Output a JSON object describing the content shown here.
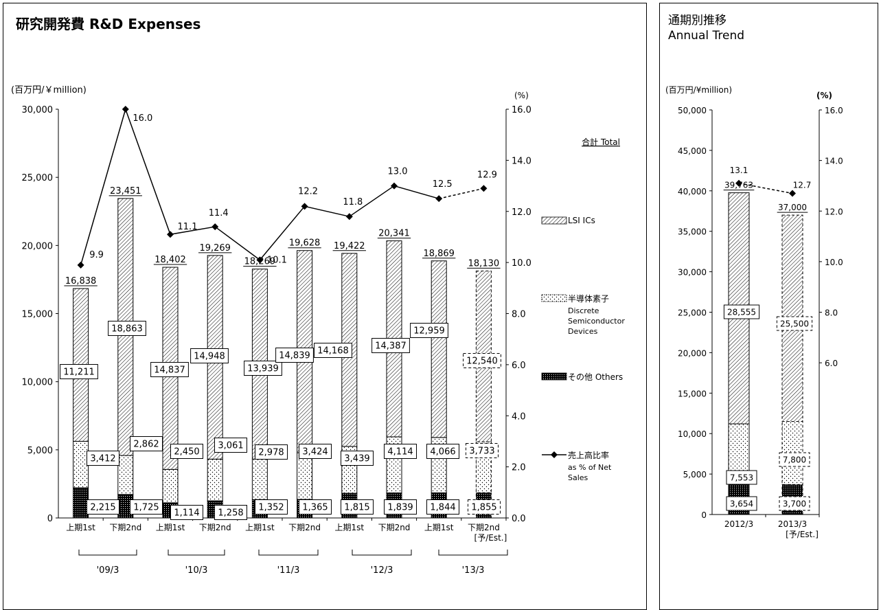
{
  "main_panel": {
    "title": "研究開発費 R&D Expenses",
    "unit_left": "(百万円/￥million)",
    "unit_right": "(%)"
  },
  "side_panel": {
    "title_jp": "通期別推移",
    "title_en": "Annual Trend",
    "unit_left": "(百万円/¥million)",
    "unit_right": "(%)"
  },
  "legend": {
    "total": "合計 Total",
    "lsi": "LSI ICs",
    "discrete_jp": "半導体素子",
    "discrete_en_1": "Discrete",
    "discrete_en_2": "Semiconductor",
    "discrete_en_3": "Devices",
    "others": "その他 Others",
    "ratio_jp": "売上高比率",
    "ratio_en_1": "as % of Net",
    "ratio_en_2": "Sales"
  },
  "colors": {
    "bar_outline": "#000000",
    "ratio_line": "#000000",
    "background": "#ffffff"
  },
  "chart_data": [
    {
      "type": "bar",
      "stacked": true,
      "title": "研究開発費 R&D Expenses",
      "ylabel": "(百万円/￥million)",
      "y2label": "(%)",
      "ylim": [
        0,
        30000
      ],
      "y2lim": [
        0,
        16
      ],
      "yticks": [
        "0",
        "5,000",
        "10,000",
        "15,000",
        "20,000",
        "25,000",
        "30,000"
      ],
      "y2ticks": [
        "0.0",
        "2.0",
        "4.0",
        "6.0",
        "8.0",
        "10.0",
        "12.0",
        "14.0",
        "16.0"
      ],
      "categories": [
        "上期1st",
        "下期2nd",
        "上期1st",
        "下期2nd",
        "上期1st",
        "下期2nd",
        "上期1st",
        "下期2nd",
        "上期1st",
        "下期2nd"
      ],
      "category_sub": [
        "",
        "",
        "",
        "",
        "",
        "",
        "",
        "",
        "",
        "[予/Est.]"
      ],
      "groups": [
        "'09/3",
        "'10/3",
        "'11/3",
        "'12/3",
        "'13/3"
      ],
      "estimate_index": 9,
      "series": [
        {
          "name": "その他 Others",
          "values": [
            2215,
            1725,
            1114,
            1258,
            1352,
            1365,
            1815,
            1839,
            1844,
            1855
          ],
          "labels": [
            "2,215",
            "1,725",
            "1,114",
            "1,258",
            "1,352",
            "1,365",
            "1,815",
            "1,839",
            "1,844",
            "1,855"
          ]
        },
        {
          "name": "半導体素子 Discrete Semiconductor Devices",
          "values": [
            3412,
            2862,
            2450,
            3061,
            2978,
            3424,
            3439,
            4114,
            4066,
            3733
          ],
          "labels": [
            "3,412",
            "2,862",
            "2,450",
            "3,061",
            "2,978",
            "3,424",
            "3,439",
            "4,114",
            "4,066",
            "3,733"
          ]
        },
        {
          "name": "LSI ICs",
          "values": [
            11211,
            18863,
            14837,
            14948,
            13939,
            14839,
            14168,
            14387,
            12959,
            12540
          ],
          "labels": [
            "11,211",
            "18,863",
            "14,837",
            "14,948",
            "13,939",
            "14,839",
            "14,168",
            "14,387",
            "12,959",
            "12,540"
          ]
        }
      ],
      "totals": [
        16838,
        23451,
        18402,
        19269,
        18269,
        19628,
        19422,
        20341,
        18869,
        18130
      ],
      "total_labels": [
        "16,838",
        "23,451",
        "18,402",
        "19,269",
        "18,269",
        "19,628",
        "19,422",
        "20,341",
        "18,869",
        "18,130"
      ],
      "ratio": {
        "name": "売上高比率 as % of Net Sales",
        "values": [
          9.9,
          16.0,
          11.1,
          11.4,
          10.1,
          12.2,
          11.8,
          13.0,
          12.5,
          12.9
        ],
        "labels": [
          "9.9",
          "16.0",
          "11.1",
          "11.4",
          "10.1",
          "12.2",
          "11.8",
          "13.0",
          "12.5",
          "12.9"
        ]
      }
    },
    {
      "type": "bar",
      "stacked": true,
      "title": "通期別推移 Annual Trend",
      "ylabel": "(百万円/¥million)",
      "y2label": "(%)",
      "ylim": [
        0,
        50000
      ],
      "y2lim": [
        0,
        16
      ],
      "yticks": [
        "0",
        "5,000",
        "10,000",
        "15,000",
        "20,000",
        "25,000",
        "30,000",
        "35,000",
        "40,000",
        "45,000",
        "50,000"
      ],
      "y2ticks": [
        "6.0",
        "8.0",
        "10.0",
        "12.0",
        "14.0",
        "16.0"
      ],
      "categories": [
        "2012/3",
        "2013/3"
      ],
      "category_sub": [
        "",
        "[予/Est.]"
      ],
      "estimate_index": 1,
      "series": [
        {
          "name": "その他 Others",
          "values": [
            3654,
            3700
          ],
          "labels": [
            "3,654",
            "3,700"
          ]
        },
        {
          "name": "半導体素子 Discrete Semiconductor Devices",
          "values": [
            7553,
            7800
          ],
          "labels": [
            "7,553",
            "7,800"
          ]
        },
        {
          "name": "LSI ICs",
          "values": [
            28555,
            25500
          ],
          "labels": [
            "28,555",
            "25,500"
          ]
        }
      ],
      "totals": [
        39763,
        37000
      ],
      "total_labels": [
        "39,763",
        "37,000"
      ],
      "ratio": {
        "name": "売上高比率 as % of Net Sales",
        "values": [
          13.1,
          12.7
        ],
        "labels": [
          "13.1",
          "12.7"
        ]
      }
    }
  ]
}
